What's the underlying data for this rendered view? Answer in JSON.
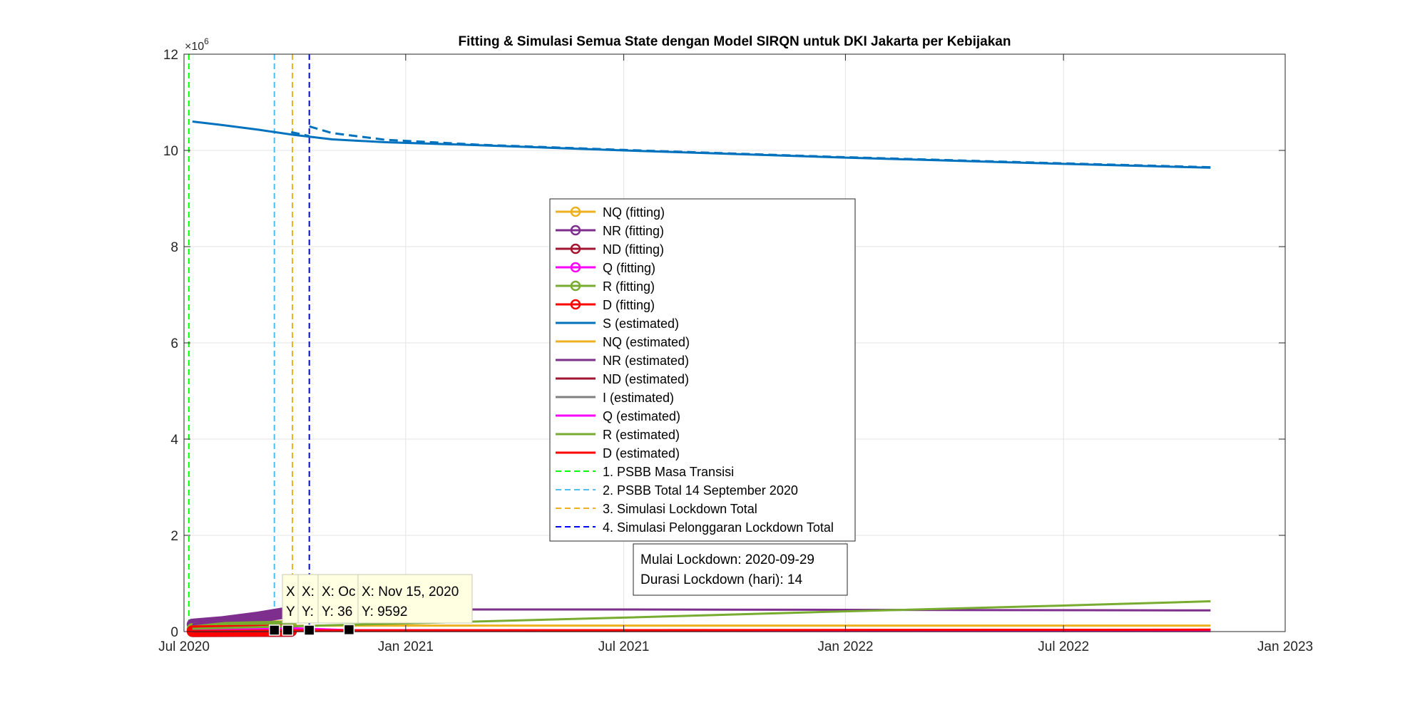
{
  "chart_data": {
    "type": "line",
    "title": "Fitting & Simulasi Semua State dengan Model SIRQN untuk DKI Jakarta per Kebijakan",
    "xlabel": "",
    "ylabel": "",
    "x_range": [
      "2020-07-01",
      "2023-01-01"
    ],
    "x_tick_labels": [
      "Jul 2020",
      "Jan 2021",
      "Jul 2021",
      "Jan 2022",
      "Jul 2022",
      "Jan 2023"
    ],
    "x_tick_dates": [
      "2020-07-01",
      "2021-01-01",
      "2021-07-01",
      "2022-01-01",
      "2022-07-01",
      "2023-01-01"
    ],
    "ylim": [
      0,
      12000000
    ],
    "y_tick_labels": [
      "0",
      "2",
      "4",
      "6",
      "8",
      "10",
      "12"
    ],
    "y_tick_values": [
      0,
      2000000,
      4000000,
      6000000,
      8000000,
      10000000,
      12000000
    ],
    "y_exponent_label": "×10",
    "y_exponent_power": "6",
    "grid": true,
    "legend_position": "center",
    "series": [
      {
        "name": "NQ (fitting)",
        "color": "#EDB120",
        "style": "marker",
        "points": [
          [
            "2020-07-08",
            30000
          ],
          [
            "2020-08-01",
            60000
          ],
          [
            "2020-09-01",
            110000
          ],
          [
            "2020-09-28",
            120000
          ]
        ]
      },
      {
        "name": "NR (fitting)",
        "color": "#7E2F8E",
        "style": "marker",
        "points": [
          [
            "2020-07-08",
            150000
          ],
          [
            "2020-08-01",
            200000
          ],
          [
            "2020-09-01",
            300000
          ],
          [
            "2020-09-28",
            410000
          ]
        ]
      },
      {
        "name": "ND (fitting)",
        "color": "#A2142F",
        "style": "marker",
        "points": [
          [
            "2020-07-08",
            4000
          ],
          [
            "2020-08-01",
            6000
          ],
          [
            "2020-09-01",
            8000
          ],
          [
            "2020-09-28",
            9000
          ]
        ]
      },
      {
        "name": "Q (fitting)",
        "color": "#FF00FF",
        "style": "marker",
        "points": [
          [
            "2020-07-08",
            20000
          ],
          [
            "2020-08-01",
            40000
          ],
          [
            "2020-09-01",
            60000
          ],
          [
            "2020-09-28",
            70000
          ]
        ]
      },
      {
        "name": "R (fitting)",
        "color": "#77AC30",
        "style": "marker",
        "points": [
          [
            "2020-07-08",
            60000
          ],
          [
            "2020-08-01",
            80000
          ],
          [
            "2020-09-01",
            100000
          ],
          [
            "2020-09-28",
            110000
          ]
        ]
      },
      {
        "name": "D (fitting)",
        "color": "#FF0000",
        "style": "marker",
        "points": [
          [
            "2020-07-08",
            10000
          ],
          [
            "2020-08-01",
            15000
          ],
          [
            "2020-09-01",
            20000
          ],
          [
            "2020-09-28",
            25000
          ]
        ]
      },
      {
        "name": "S (estimated)",
        "color": "#0072BD",
        "style": "line",
        "points": [
          [
            "2020-07-08",
            10600000
          ],
          [
            "2020-08-01",
            10530000
          ],
          [
            "2020-09-01",
            10430000
          ],
          [
            "2020-09-28",
            10330000
          ],
          [
            "2020-11-01",
            10230000
          ],
          [
            "2020-12-15",
            10170000
          ],
          [
            "2021-03-01",
            10110000
          ],
          [
            "2021-07-01",
            10000000
          ],
          [
            "2022-01-01",
            9850000
          ],
          [
            "2022-07-01",
            9720000
          ],
          [
            "2022-10-31",
            9640000
          ]
        ]
      },
      {
        "name": "NQ (estimated)",
        "color": "#EDB120",
        "style": "line",
        "points": [
          [
            "2020-07-08",
            30000
          ],
          [
            "2020-09-28",
            120000
          ],
          [
            "2020-11-01",
            125000
          ],
          [
            "2022-10-31",
            125000
          ]
        ]
      },
      {
        "name": "NR (estimated)",
        "color": "#7E2F8E",
        "style": "line",
        "points": [
          [
            "2020-07-08",
            150000
          ],
          [
            "2020-09-01",
            300000
          ],
          [
            "2020-10-20",
            440000
          ],
          [
            "2020-11-15",
            460000
          ],
          [
            "2021-07-01",
            460000
          ],
          [
            "2022-10-31",
            440000
          ]
        ]
      },
      {
        "name": "ND (estimated)",
        "color": "#A2142F",
        "style": "line",
        "points": [
          [
            "2020-07-08",
            4000
          ],
          [
            "2020-10-15",
            10000
          ],
          [
            "2022-10-31",
            12000
          ]
        ]
      },
      {
        "name": "I (estimated)",
        "color": "#808080",
        "style": "line",
        "points": [
          [
            "2020-07-08",
            20000
          ],
          [
            "2020-09-28",
            40000
          ],
          [
            "2020-11-15",
            15000
          ],
          [
            "2022-10-31",
            10000
          ]
        ]
      },
      {
        "name": "Q (estimated)",
        "color": "#FF00FF",
        "style": "line",
        "points": [
          [
            "2020-07-08",
            20000
          ],
          [
            "2020-09-28",
            70000
          ],
          [
            "2020-11-15",
            30000
          ],
          [
            "2022-10-31",
            20000
          ]
        ]
      },
      {
        "name": "R (estimated)",
        "color": "#77AC30",
        "style": "line",
        "points": [
          [
            "2020-07-08",
            60000
          ],
          [
            "2020-09-28",
            110000
          ],
          [
            "2021-01-01",
            170000
          ],
          [
            "2021-07-01",
            290000
          ],
          [
            "2022-01-01",
            420000
          ],
          [
            "2022-07-01",
            540000
          ],
          [
            "2022-10-31",
            630000
          ]
        ]
      },
      {
        "name": "D (estimated)",
        "color": "#FF0000",
        "style": "line",
        "points": [
          [
            "2020-07-08",
            10000
          ],
          [
            "2020-09-28",
            25000
          ],
          [
            "2021-07-01",
            30000
          ],
          [
            "2022-10-31",
            40000
          ]
        ]
      },
      {
        "name": "1. PSBB Masa Transisi",
        "color": "#00FF00",
        "style": "vline",
        "date": "2020-07-05"
      },
      {
        "name": "2. PSBB Total 14 September 2020",
        "color": "#4DBEEE",
        "style": "vline",
        "date": "2020-09-14"
      },
      {
        "name": "3. Simulasi Lockdown Total",
        "color": "#EDB120",
        "style": "vline",
        "date": "2020-09-29"
      },
      {
        "name": "4. Simulasi Pelonggaran Lockdown Total",
        "color": "#0000FF",
        "style": "vline",
        "date": "2020-10-13"
      }
    ],
    "scenario_lines": [
      {
        "name": "S",
        "color": "#0072BD",
        "points": [
          [
            "2020-09-28",
            10380000
          ],
          [
            "2020-10-13",
            10300000
          ]
        ]
      },
      {
        "name": "S",
        "color": "#0072BD",
        "points": [
          [
            "2020-10-13",
            10500000
          ],
          [
            "2020-11-01",
            10360000
          ],
          [
            "2020-12-15",
            10220000
          ],
          [
            "2021-03-01",
            10120000
          ],
          [
            "2021-07-01",
            10010000
          ],
          [
            "2022-01-01",
            9860000
          ],
          [
            "2022-07-01",
            9730000
          ],
          [
            "2022-10-31",
            9650000
          ]
        ]
      }
    ],
    "datatip_markers": [
      {
        "date": "2020-09-14",
        "value": 0
      },
      {
        "date": "2020-09-25",
        "value": 0
      },
      {
        "date": "2020-10-13",
        "value": 0
      },
      {
        "date": "2020-11-15",
        "value": 9592
      }
    ],
    "annotation_lines": [
      "Mulai Lockdown: 2020-09-29",
      "Durasi Lockdown (hari): 14"
    ],
    "datatips": [
      {
        "x_text": "X",
        "y_text": "Y"
      },
      {
        "x_text": "X:",
        "y_text": "Y:"
      },
      {
        "x_text": "X: Oc",
        "y_text": "Y: 36"
      },
      {
        "x_text": "X: Nov 15, 2020",
        "y_text": "Y: 9592"
      }
    ]
  }
}
